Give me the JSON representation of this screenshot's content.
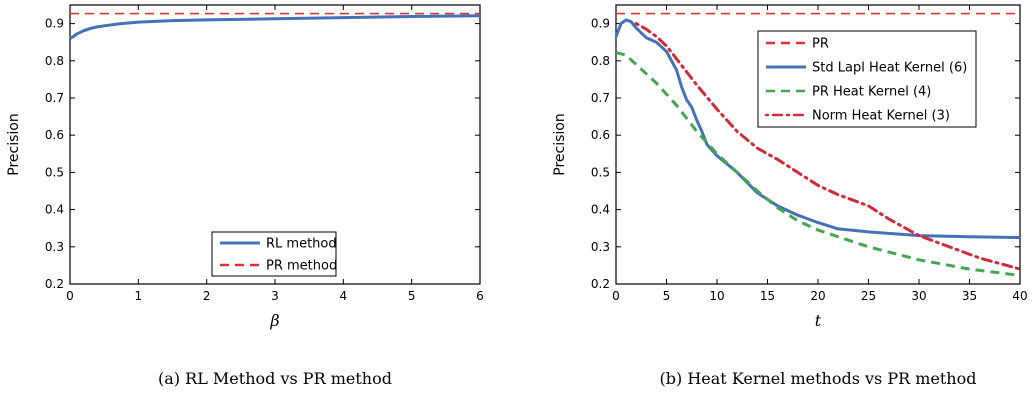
{
  "chart_data": [
    {
      "type": "line",
      "xlabel": "β",
      "ylabel": "Precision",
      "caption": "(a) RL Method vs PR method",
      "xlim": [
        0,
        6
      ],
      "ylim": [
        0.2,
        0.95
      ],
      "xticks": [
        0,
        1,
        2,
        3,
        4,
        5,
        6
      ],
      "yticks": [
        0.2,
        0.3,
        0.4,
        0.5,
        0.6,
        0.7,
        0.8,
        0.9
      ],
      "xtick_labels": [
        "0",
        "1",
        "2",
        "3",
        "4",
        "5",
        "6"
      ],
      "ytick_labels": [
        "0.2",
        "0.3",
        "0.4",
        "0.5",
        "0.6",
        "0.7",
        "0.8",
        "0.9"
      ],
      "legend_position": "bottom-right",
      "grid": false,
      "series": [
        {
          "name": "RL method",
          "color": "#4472b8",
          "style": "solid",
          "x": [
            0,
            0.05,
            0.1,
            0.2,
            0.3,
            0.4,
            0.5,
            0.7,
            1.0,
            1.5,
            2,
            3,
            4,
            5,
            6
          ],
          "y": [
            0.86,
            0.865,
            0.872,
            0.881,
            0.887,
            0.891,
            0.894,
            0.899,
            0.904,
            0.908,
            0.91,
            0.913,
            0.916,
            0.919,
            0.921
          ]
        },
        {
          "name": "PR method",
          "color": "#e03232",
          "style": "dashed",
          "x": [
            0,
            6
          ],
          "y": [
            0.927,
            0.927
          ]
        }
      ]
    },
    {
      "type": "line",
      "xlabel": "t",
      "ylabel": "Precision",
      "caption": "(b) Heat Kernel methods vs PR method",
      "xlim": [
        0,
        40
      ],
      "ylim": [
        0.2,
        0.95
      ],
      "xticks": [
        0,
        5,
        10,
        15,
        20,
        25,
        30,
        35,
        40
      ],
      "yticks": [
        0.2,
        0.3,
        0.4,
        0.5,
        0.6,
        0.7,
        0.8,
        0.9
      ],
      "xtick_labels": [
        "0",
        "5",
        "10",
        "15",
        "20",
        "25",
        "30",
        "35",
        "40"
      ],
      "ytick_labels": [
        "0.2",
        "0.3",
        "0.4",
        "0.5",
        "0.6",
        "0.7",
        "0.8",
        "0.9"
      ],
      "legend_position": "top-center",
      "grid": false,
      "series": [
        {
          "name": "PR",
          "color": "#e03232",
          "style": "dashed",
          "x": [
            0,
            40
          ],
          "y": [
            0.927,
            0.927
          ]
        },
        {
          "name": "Std Lapl Heat Kernel (6)",
          "color": "#4472b8",
          "style": "solid",
          "x": [
            0,
            0.5,
            1,
            1.5,
            2,
            3,
            4,
            5,
            6,
            6.5,
            7,
            7.5,
            8,
            8.5,
            9,
            10,
            12,
            14,
            16,
            18,
            20,
            22,
            25,
            30,
            35,
            40
          ],
          "y": [
            0.865,
            0.9,
            0.91,
            0.905,
            0.888,
            0.862,
            0.85,
            0.825,
            0.775,
            0.73,
            0.695,
            0.675,
            0.64,
            0.61,
            0.575,
            0.545,
            0.5,
            0.445,
            0.41,
            0.385,
            0.365,
            0.348,
            0.34,
            0.33,
            0.327,
            0.325
          ]
        },
        {
          "name": "PR Heat Kernel (4)",
          "color": "#44a64e",
          "style": "dashed",
          "x": [
            0,
            1,
            2,
            4,
            6,
            8,
            10,
            12,
            14,
            16,
            18,
            20,
            25,
            30,
            35,
            40
          ],
          "y": [
            0.822,
            0.815,
            0.79,
            0.74,
            0.68,
            0.61,
            0.55,
            0.5,
            0.45,
            0.405,
            0.37,
            0.345,
            0.3,
            0.265,
            0.24,
            0.223
          ]
        },
        {
          "name": "Norm Heat Kernel (3)",
          "color": "#d12a3a",
          "style": "dashdot",
          "x": [
            2,
            3,
            4,
            5,
            6,
            7,
            8,
            10,
            12,
            14,
            16,
            18,
            20,
            22,
            25,
            27,
            30,
            33,
            36,
            40
          ],
          "y": [
            0.9,
            0.885,
            0.865,
            0.84,
            0.805,
            0.77,
            0.735,
            0.67,
            0.61,
            0.565,
            0.535,
            0.5,
            0.465,
            0.44,
            0.41,
            0.375,
            0.33,
            0.3,
            0.27,
            0.24
          ]
        }
      ]
    }
  ]
}
